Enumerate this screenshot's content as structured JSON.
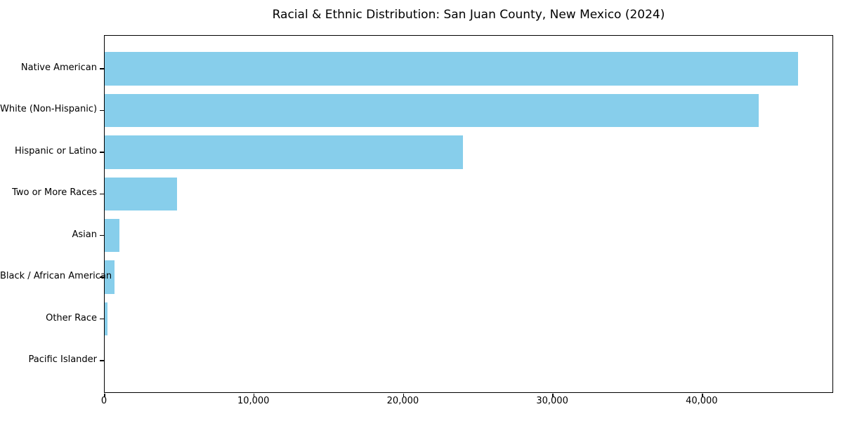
{
  "figure": {
    "title": "Racial & Ethnic Distribution: San Juan County, New Mexico (2024)",
    "background_color": "#FFFFFF"
  },
  "chart_data": {
    "type": "bar",
    "orientation": "horizontal",
    "title": "Racial & Ethnic Distribution: San Juan County, New Mexico (2024)",
    "categories": [
      "Native American",
      "White (Non-Hispanic)",
      "Hispanic or Latino",
      "Two or More Races",
      "Asian",
      "Black / African American",
      "Other Race",
      "Pacific Islander"
    ],
    "values": [
      46400,
      43750,
      24000,
      4850,
      980,
      670,
      210,
      0
    ],
    "bar_color": "#87CEEB",
    "axis_color": "#000000",
    "xlabel": "",
    "ylabel": "",
    "xlim": [
      0,
      48800
    ],
    "xticks": [
      0,
      10000,
      20000,
      30000,
      40000
    ],
    "xtick_labels": [
      "0",
      "10,000",
      "20,000",
      "30,000",
      "40,000"
    ],
    "grid": false,
    "legend": "none"
  }
}
